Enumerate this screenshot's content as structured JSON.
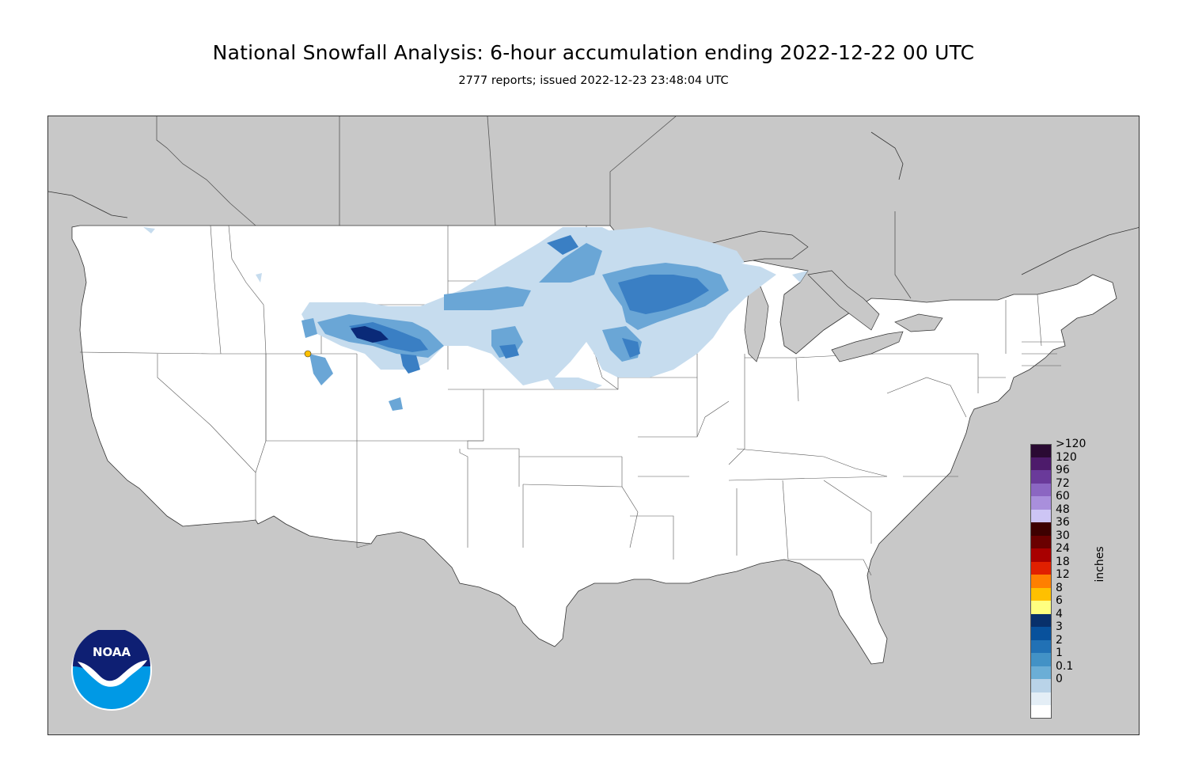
{
  "title": "National Snowfall Analysis: 6-hour accumulation ending 2022-12-22 00 UTC",
  "subtitle": "2777 reports; issued 2022-12-23 23:48:04 UTC",
  "legend": {
    "units": "inches",
    "bins": [
      {
        "label": ">120",
        "color": "#2a0a33"
      },
      {
        "label": "120",
        "color": "#4d1b6b"
      },
      {
        "label": "96",
        "color": "#6a3a9a"
      },
      {
        "label": "72",
        "color": "#8b66c2"
      },
      {
        "label": "60",
        "color": "#a98fdc"
      },
      {
        "label": "48",
        "color": "#cdc5f5"
      },
      {
        "label": "36",
        "color": "#3d0000"
      },
      {
        "label": "30",
        "color": "#6a0000"
      },
      {
        "label": "24",
        "color": "#a80000"
      },
      {
        "label": "18",
        "color": "#e02000"
      },
      {
        "label": "12",
        "color": "#ff7f00"
      },
      {
        "label": "8",
        "color": "#ffc000"
      },
      {
        "label": "6",
        "color": "#ffff80"
      },
      {
        "label": "4",
        "color": "#08306b"
      },
      {
        "label": "3",
        "color": "#08519c"
      },
      {
        "label": "2",
        "color": "#2171b5"
      },
      {
        "label": "1",
        "color": "#4292c6"
      },
      {
        "label": "0.1",
        "color": "#6baed6"
      },
      {
        "label": "0",
        "color": "#b9d3e8"
      },
      {
        "label": "",
        "color": "#e4eef6"
      },
      {
        "label": "",
        "color": "#ffffff"
      }
    ]
  },
  "logo": {
    "text": "NOAA"
  },
  "colors": {
    "ocean_land_outside": "#c8c8c8",
    "conus": "#ffffff",
    "snow_light": "#c6dcee",
    "snow_mid": "#6aa6d6",
    "snow_heavy": "#3a7fc4",
    "snow_max": "#0a2a78"
  }
}
